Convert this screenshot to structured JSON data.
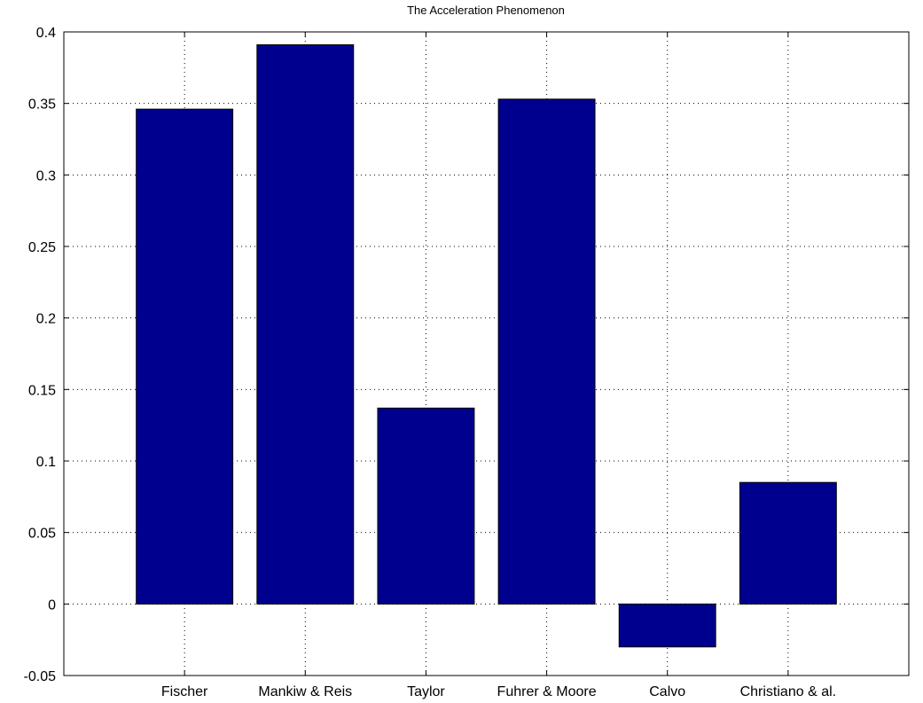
{
  "chart_data": {
    "type": "bar",
    "title": "The Acceleration Phenomenon",
    "xlabel": "",
    "ylabel": "",
    "categories": [
      "Fischer",
      "Mankiw & Reis",
      "Taylor",
      "Fuhrer & Moore",
      "Calvo",
      "Christiano & al."
    ],
    "values": [
      0.346,
      0.391,
      0.137,
      0.353,
      -0.03,
      0.085
    ],
    "ylim": [
      -0.05,
      0.4
    ],
    "yticks": [
      -0.05,
      0,
      0.05,
      0.1,
      0.15,
      0.2,
      0.25,
      0.3,
      0.35,
      0.4
    ],
    "ytick_labels": [
      "-0.05",
      "0",
      "0.05",
      "0.1",
      "0.15",
      "0.2",
      "0.25",
      "0.3",
      "0.35",
      "0.4"
    ],
    "grid": true,
    "legend": "none",
    "bar_color": "#00008f"
  }
}
